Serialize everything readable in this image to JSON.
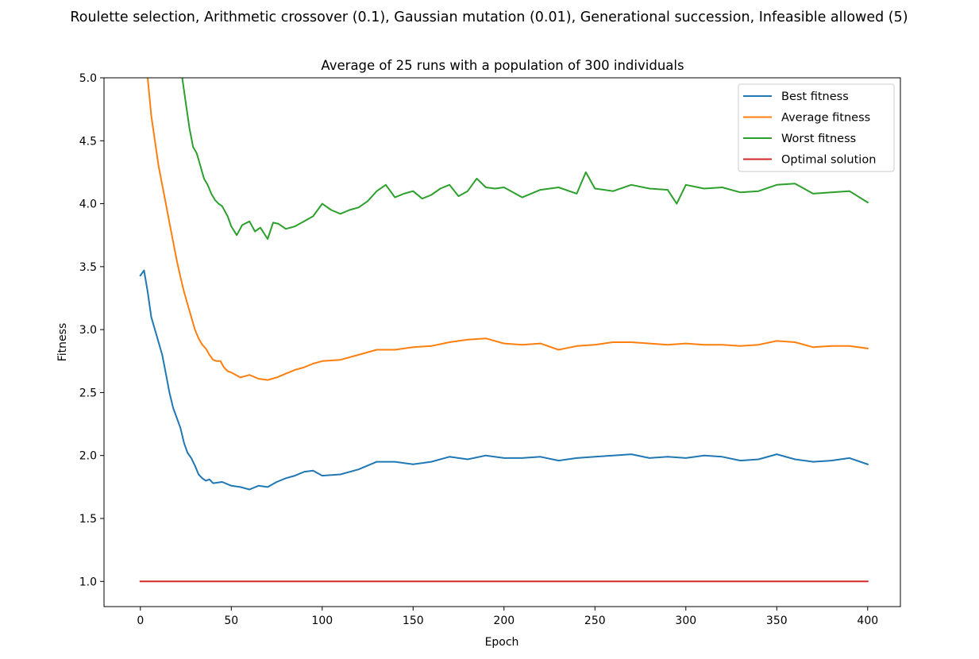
{
  "chart_data": {
    "type": "line",
    "suptitle": "Roulette selection, Arithmetic crossover (0.1), Gaussian mutation (0.01), Generational succession, Infeasible allowed (5)",
    "title": "Average of 25 runs with a population of 300 individuals",
    "xlabel": "Epoch",
    "ylabel": "Fitness",
    "xlim": [
      -20,
      418
    ],
    "ylim": [
      0.8,
      5.0
    ],
    "xticks": [
      0,
      50,
      100,
      150,
      200,
      250,
      300,
      350,
      400
    ],
    "xtick_labels": [
      "0",
      "50",
      "100",
      "150",
      "200",
      "250",
      "300",
      "350",
      "400"
    ],
    "yticks": [
      1.0,
      1.5,
      2.0,
      2.5,
      3.0,
      3.5,
      4.0,
      4.5,
      5.0
    ],
    "ytick_labels": [
      "1.0",
      "1.5",
      "2.0",
      "2.5",
      "3.0",
      "3.5",
      "4.0",
      "4.5",
      "5.0"
    ],
    "grid": false,
    "legend_position": "top-right",
    "series": [
      {
        "name": "Best fitness",
        "color": "#1f77b4",
        "x": [
          0,
          2,
          4,
          6,
          8,
          10,
          12,
          14,
          16,
          18,
          20,
          22,
          24,
          26,
          28,
          30,
          32,
          34,
          36,
          38,
          40,
          45,
          50,
          55,
          60,
          65,
          70,
          75,
          80,
          85,
          90,
          95,
          100,
          110,
          120,
          130,
          140,
          150,
          160,
          170,
          180,
          190,
          200,
          210,
          220,
          230,
          240,
          250,
          260,
          270,
          280,
          290,
          300,
          310,
          320,
          330,
          340,
          350,
          360,
          370,
          380,
          390,
          400
        ],
        "y": [
          3.43,
          3.47,
          3.3,
          3.1,
          3.0,
          2.9,
          2.8,
          2.65,
          2.5,
          2.38,
          2.3,
          2.22,
          2.1,
          2.02,
          1.98,
          1.92,
          1.85,
          1.82,
          1.8,
          1.81,
          1.78,
          1.79,
          1.76,
          1.75,
          1.73,
          1.76,
          1.75,
          1.79,
          1.82,
          1.84,
          1.87,
          1.88,
          1.84,
          1.85,
          1.89,
          1.95,
          1.95,
          1.93,
          1.95,
          1.99,
          1.97,
          2.0,
          1.98,
          1.98,
          1.99,
          1.96,
          1.98,
          1.99,
          2.0,
          2.01,
          1.98,
          1.99,
          1.98,
          2.0,
          1.99,
          1.96,
          1.97,
          2.01,
          1.97,
          1.95,
          1.96,
          1.98,
          1.93
        ]
      },
      {
        "name": "Average fitness",
        "color": "#ff7f0e",
        "x": [
          4,
          6,
          8,
          10,
          12,
          14,
          16,
          18,
          20,
          22,
          24,
          26,
          28,
          30,
          32,
          34,
          36,
          38,
          40,
          42,
          44,
          46,
          48,
          50,
          55,
          60,
          65,
          70,
          75,
          80,
          85,
          90,
          95,
          100,
          110,
          120,
          130,
          140,
          150,
          160,
          170,
          180,
          190,
          200,
          210,
          220,
          230,
          240,
          250,
          260,
          270,
          280,
          290,
          300,
          310,
          320,
          330,
          340,
          350,
          360,
          370,
          380,
          390,
          400
        ],
        "y": [
          5.0,
          4.7,
          4.5,
          4.3,
          4.15,
          4.0,
          3.85,
          3.7,
          3.55,
          3.42,
          3.3,
          3.2,
          3.1,
          3.0,
          2.93,
          2.88,
          2.85,
          2.8,
          2.76,
          2.75,
          2.75,
          2.7,
          2.67,
          2.66,
          2.62,
          2.64,
          2.61,
          2.6,
          2.62,
          2.65,
          2.68,
          2.7,
          2.73,
          2.75,
          2.76,
          2.8,
          2.84,
          2.84,
          2.86,
          2.87,
          2.9,
          2.92,
          2.93,
          2.89,
          2.88,
          2.89,
          2.84,
          2.87,
          2.88,
          2.9,
          2.9,
          2.89,
          2.88,
          2.89,
          2.88,
          2.88,
          2.87,
          2.88,
          2.91,
          2.9,
          2.86,
          2.87,
          2.87,
          2.85
        ]
      },
      {
        "name": "Worst fitness",
        "color": "#2ca02c",
        "x": [
          23,
          25,
          27,
          29,
          31,
          33,
          35,
          37,
          39,
          41,
          43,
          45,
          48,
          50,
          53,
          56,
          60,
          63,
          66,
          70,
          73,
          76,
          80,
          85,
          90,
          95,
          100,
          105,
          110,
          115,
          120,
          125,
          130,
          135,
          140,
          145,
          150,
          155,
          160,
          165,
          170,
          175,
          180,
          185,
          190,
          195,
          200,
          210,
          220,
          230,
          240,
          245,
          250,
          260,
          270,
          280,
          290,
          295,
          300,
          310,
          320,
          330,
          340,
          350,
          360,
          370,
          380,
          390,
          400
        ],
        "y": [
          5.0,
          4.8,
          4.6,
          4.45,
          4.4,
          4.3,
          4.2,
          4.15,
          4.08,
          4.03,
          4.0,
          3.98,
          3.9,
          3.82,
          3.75,
          3.83,
          3.86,
          3.78,
          3.81,
          3.72,
          3.85,
          3.84,
          3.8,
          3.82,
          3.86,
          3.9,
          4.0,
          3.95,
          3.92,
          3.95,
          3.97,
          4.02,
          4.1,
          4.15,
          4.05,
          4.08,
          4.1,
          4.04,
          4.07,
          4.12,
          4.15,
          4.06,
          4.1,
          4.2,
          4.13,
          4.12,
          4.13,
          4.05,
          4.11,
          4.13,
          4.08,
          4.25,
          4.12,
          4.1,
          4.15,
          4.12,
          4.11,
          4.0,
          4.15,
          4.12,
          4.13,
          4.09,
          4.1,
          4.15,
          4.16,
          4.08,
          4.09,
          4.1,
          4.01
        ]
      },
      {
        "name": "Optimal solution",
        "color": "#d62728",
        "x": [
          0,
          400
        ],
        "y": [
          1.0,
          1.0
        ]
      }
    ]
  }
}
